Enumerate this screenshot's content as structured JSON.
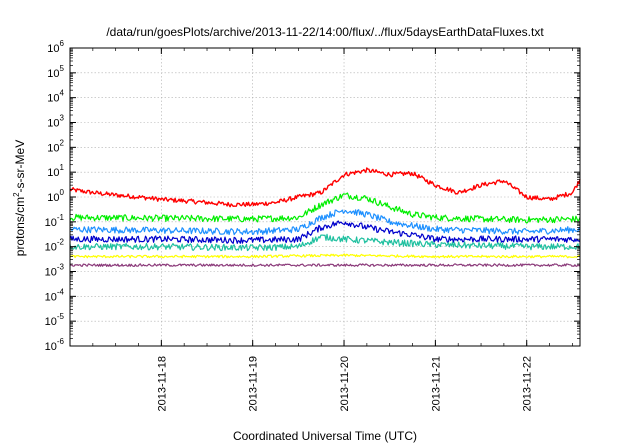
{
  "chart_data": {
    "type": "line",
    "title": "/data/run/goesPlots/archive/2013-11-22/14:00/flux/../flux/5daysEarthDataFluxes.txt",
    "xlabel": "Coordinated Universal Time (UTC)",
    "ylabel_parts": {
      "base": "protons/cm",
      "sup": "2",
      "tail": "-s-sr-MeV"
    },
    "y_scale": "log",
    "ylim_exponents": [
      -6,
      6
    ],
    "y_ticks": [
      {
        "base": "10",
        "exp": "6"
      },
      {
        "base": "10",
        "exp": "5"
      },
      {
        "base": "10",
        "exp": "4"
      },
      {
        "base": "10",
        "exp": "3"
      },
      {
        "base": "10",
        "exp": "2"
      },
      {
        "base": "10",
        "exp": "1"
      },
      {
        "base": "10",
        "exp": "0"
      },
      {
        "base": "10",
        "exp": "-1"
      },
      {
        "base": "10",
        "exp": "-2"
      },
      {
        "base": "10",
        "exp": "-3"
      },
      {
        "base": "10",
        "exp": "-4"
      },
      {
        "base": "10",
        "exp": "-5"
      },
      {
        "base": "10",
        "exp": "-6"
      }
    ],
    "x_range_days": [
      "2013-11-17 00:00",
      "2013-11-22 14:00"
    ],
    "x_ticks": [
      "2013-11-18",
      "2013-11-19",
      "2013-11-20",
      "2013-11-21",
      "2013-11-22"
    ],
    "grid": true,
    "series": [
      {
        "color": "#ff0000",
        "x": [
          "2013-11-17 00:00",
          "2013-11-17 06:00",
          "2013-11-17 12:00",
          "2013-11-17 18:00",
          "2013-11-18 00:00",
          "2013-11-18 06:00",
          "2013-11-18 12:00",
          "2013-11-18 18:00",
          "2013-11-19 00:00",
          "2013-11-19 06:00",
          "2013-11-19 12:00",
          "2013-11-19 18:00",
          "2013-11-20 00:00",
          "2013-11-20 06:00",
          "2013-11-20 12:00",
          "2013-11-20 18:00",
          "2013-11-21 00:00",
          "2013-11-21 06:00",
          "2013-11-21 12:00",
          "2013-11-21 18:00",
          "2013-11-22 00:00",
          "2013-11-22 06:00",
          "2013-11-22 12:00",
          "2013-11-22 14:00"
        ],
        "y": [
          2.0,
          1.5,
          1.2,
          1.0,
          0.8,
          0.7,
          0.6,
          0.5,
          0.5,
          0.6,
          1.0,
          1.5,
          8.0,
          12.0,
          8.0,
          9.0,
          3.0,
          1.5,
          3.0,
          4.5,
          1.0,
          0.8,
          1.5,
          5.0
        ]
      },
      {
        "color": "#00ee00",
        "x": [
          "2013-11-17 00:00",
          "2013-11-18 00:00",
          "2013-11-19 00:00",
          "2013-11-19 12:00",
          "2013-11-19 18:00",
          "2013-11-20 00:00",
          "2013-11-20 06:00",
          "2013-11-20 12:00",
          "2013-11-20 18:00",
          "2013-11-21 00:00",
          "2013-11-21 12:00",
          "2013-11-22 00:00",
          "2013-11-22 14:00"
        ],
        "y": [
          0.15,
          0.14,
          0.13,
          0.15,
          0.5,
          1.2,
          0.9,
          0.4,
          0.2,
          0.15,
          0.13,
          0.12,
          0.13
        ]
      },
      {
        "color": "#1e90ff",
        "x": [
          "2013-11-17 00:00",
          "2013-11-18 00:00",
          "2013-11-19 00:00",
          "2013-11-19 12:00",
          "2013-11-19 18:00",
          "2013-11-20 00:00",
          "2013-11-20 06:00",
          "2013-11-20 12:00",
          "2013-11-20 18:00",
          "2013-11-21 00:00",
          "2013-11-21 12:00",
          "2013-11-22 00:00",
          "2013-11-22 14:00"
        ],
        "y": [
          0.05,
          0.045,
          0.04,
          0.05,
          0.15,
          0.3,
          0.2,
          0.1,
          0.07,
          0.05,
          0.045,
          0.04,
          0.05
        ]
      },
      {
        "color": "#0000cc",
        "x": [
          "2013-11-17 00:00",
          "2013-11-18 00:00",
          "2013-11-19 00:00",
          "2013-11-19 12:00",
          "2013-11-19 18:00",
          "2013-11-20 00:00",
          "2013-11-20 06:00",
          "2013-11-20 12:00",
          "2013-11-20 18:00",
          "2013-11-21 00:00",
          "2013-11-21 12:00",
          "2013-11-22 00:00",
          "2013-11-22 14:00"
        ],
        "y": [
          0.02,
          0.02,
          0.018,
          0.02,
          0.06,
          0.1,
          0.06,
          0.04,
          0.03,
          0.02,
          0.02,
          0.02,
          0.02
        ]
      },
      {
        "color": "#20c0a0",
        "x": [
          "2013-11-17 00:00",
          "2013-11-18 00:00",
          "2013-11-19 00:00",
          "2013-11-19 12:00",
          "2013-11-19 18:00",
          "2013-11-20 00:00",
          "2013-11-20 12:00",
          "2013-11-21 00:00",
          "2013-11-22 00:00",
          "2013-11-22 14:00"
        ],
        "y": [
          0.01,
          0.01,
          0.009,
          0.01,
          0.025,
          0.02,
          0.015,
          0.012,
          0.01,
          0.01
        ]
      },
      {
        "color": "#ffff00",
        "x": [
          "2013-11-17 00:00",
          "2013-11-18 00:00",
          "2013-11-19 00:00",
          "2013-11-20 00:00",
          "2013-11-21 00:00",
          "2013-11-22 00:00",
          "2013-11-22 14:00"
        ],
        "y": [
          0.004,
          0.004,
          0.004,
          0.0045,
          0.004,
          0.004,
          0.004
        ]
      },
      {
        "color": "#8b3a7a",
        "x": [
          "2013-11-17 00:00",
          "2013-11-18 00:00",
          "2013-11-19 00:00",
          "2013-11-20 00:00",
          "2013-11-21 00:00",
          "2013-11-22 00:00",
          "2013-11-22 14:00"
        ],
        "y": [
          0.0018,
          0.0018,
          0.0018,
          0.0018,
          0.0018,
          0.0018,
          0.0018
        ]
      }
    ]
  }
}
